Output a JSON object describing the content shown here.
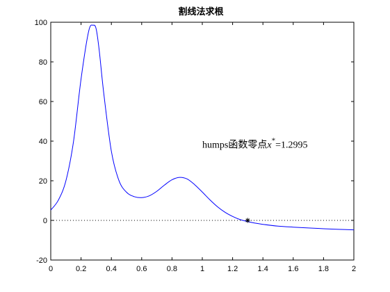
{
  "chart_data": {
    "type": "line",
    "title": "割线法求根",
    "xlabel": "",
    "ylabel": "",
    "xlim": [
      0,
      2
    ],
    "ylim": [
      -20,
      100
    ],
    "grid": false,
    "x_ticks": [
      "0",
      "0.2",
      "0.4",
      "0.6",
      "0.8",
      "1",
      "1.2",
      "1.4",
      "1.6",
      "1.8",
      "2"
    ],
    "y_ticks": [
      "-20",
      "0",
      "20",
      "40",
      "60",
      "80",
      "100"
    ],
    "series": [
      {
        "color": "#0000ff",
        "style": "solid",
        "x": [
          0,
          0.05,
          0.1,
          0.15,
          0.2,
          0.25,
          0.28,
          0.3,
          0.32,
          0.35,
          0.4,
          0.45,
          0.5,
          0.55,
          0.6,
          0.65,
          0.7,
          0.75,
          0.8,
          0.85,
          0.9,
          0.95,
          1.0,
          1.05,
          1.1,
          1.15,
          1.2,
          1.25,
          1.3,
          1.35,
          1.4,
          1.5,
          1.6,
          1.7,
          1.8,
          1.9,
          2.0
        ],
        "y": [
          5.2,
          10.2,
          20.0,
          39.7,
          71.4,
          95.4,
          98.5,
          96.5,
          85.7,
          64.0,
          34.9,
          20.1,
          14.2,
          12.0,
          11.5,
          12.4,
          14.7,
          17.8,
          20.5,
          21.7,
          20.9,
          18.0,
          14.3,
          10.4,
          6.9,
          4.1,
          2.0,
          0.4,
          -0.6,
          -1.4,
          -2.0,
          -2.9,
          -3.4,
          -3.8,
          -4.2,
          -4.5,
          -4.8
        ]
      }
    ],
    "reference_lines": [
      {
        "y": 0,
        "style": "dotted",
        "color": "#000000"
      }
    ],
    "markers": [
      {
        "x": 1.2995,
        "y": 0,
        "symbol": "*"
      }
    ],
    "annotation": {
      "x": 1.0,
      "y": 38,
      "prefix": "humps函数零点",
      "var": "x",
      "sup": "*",
      "suffix": "=1.2995"
    }
  }
}
